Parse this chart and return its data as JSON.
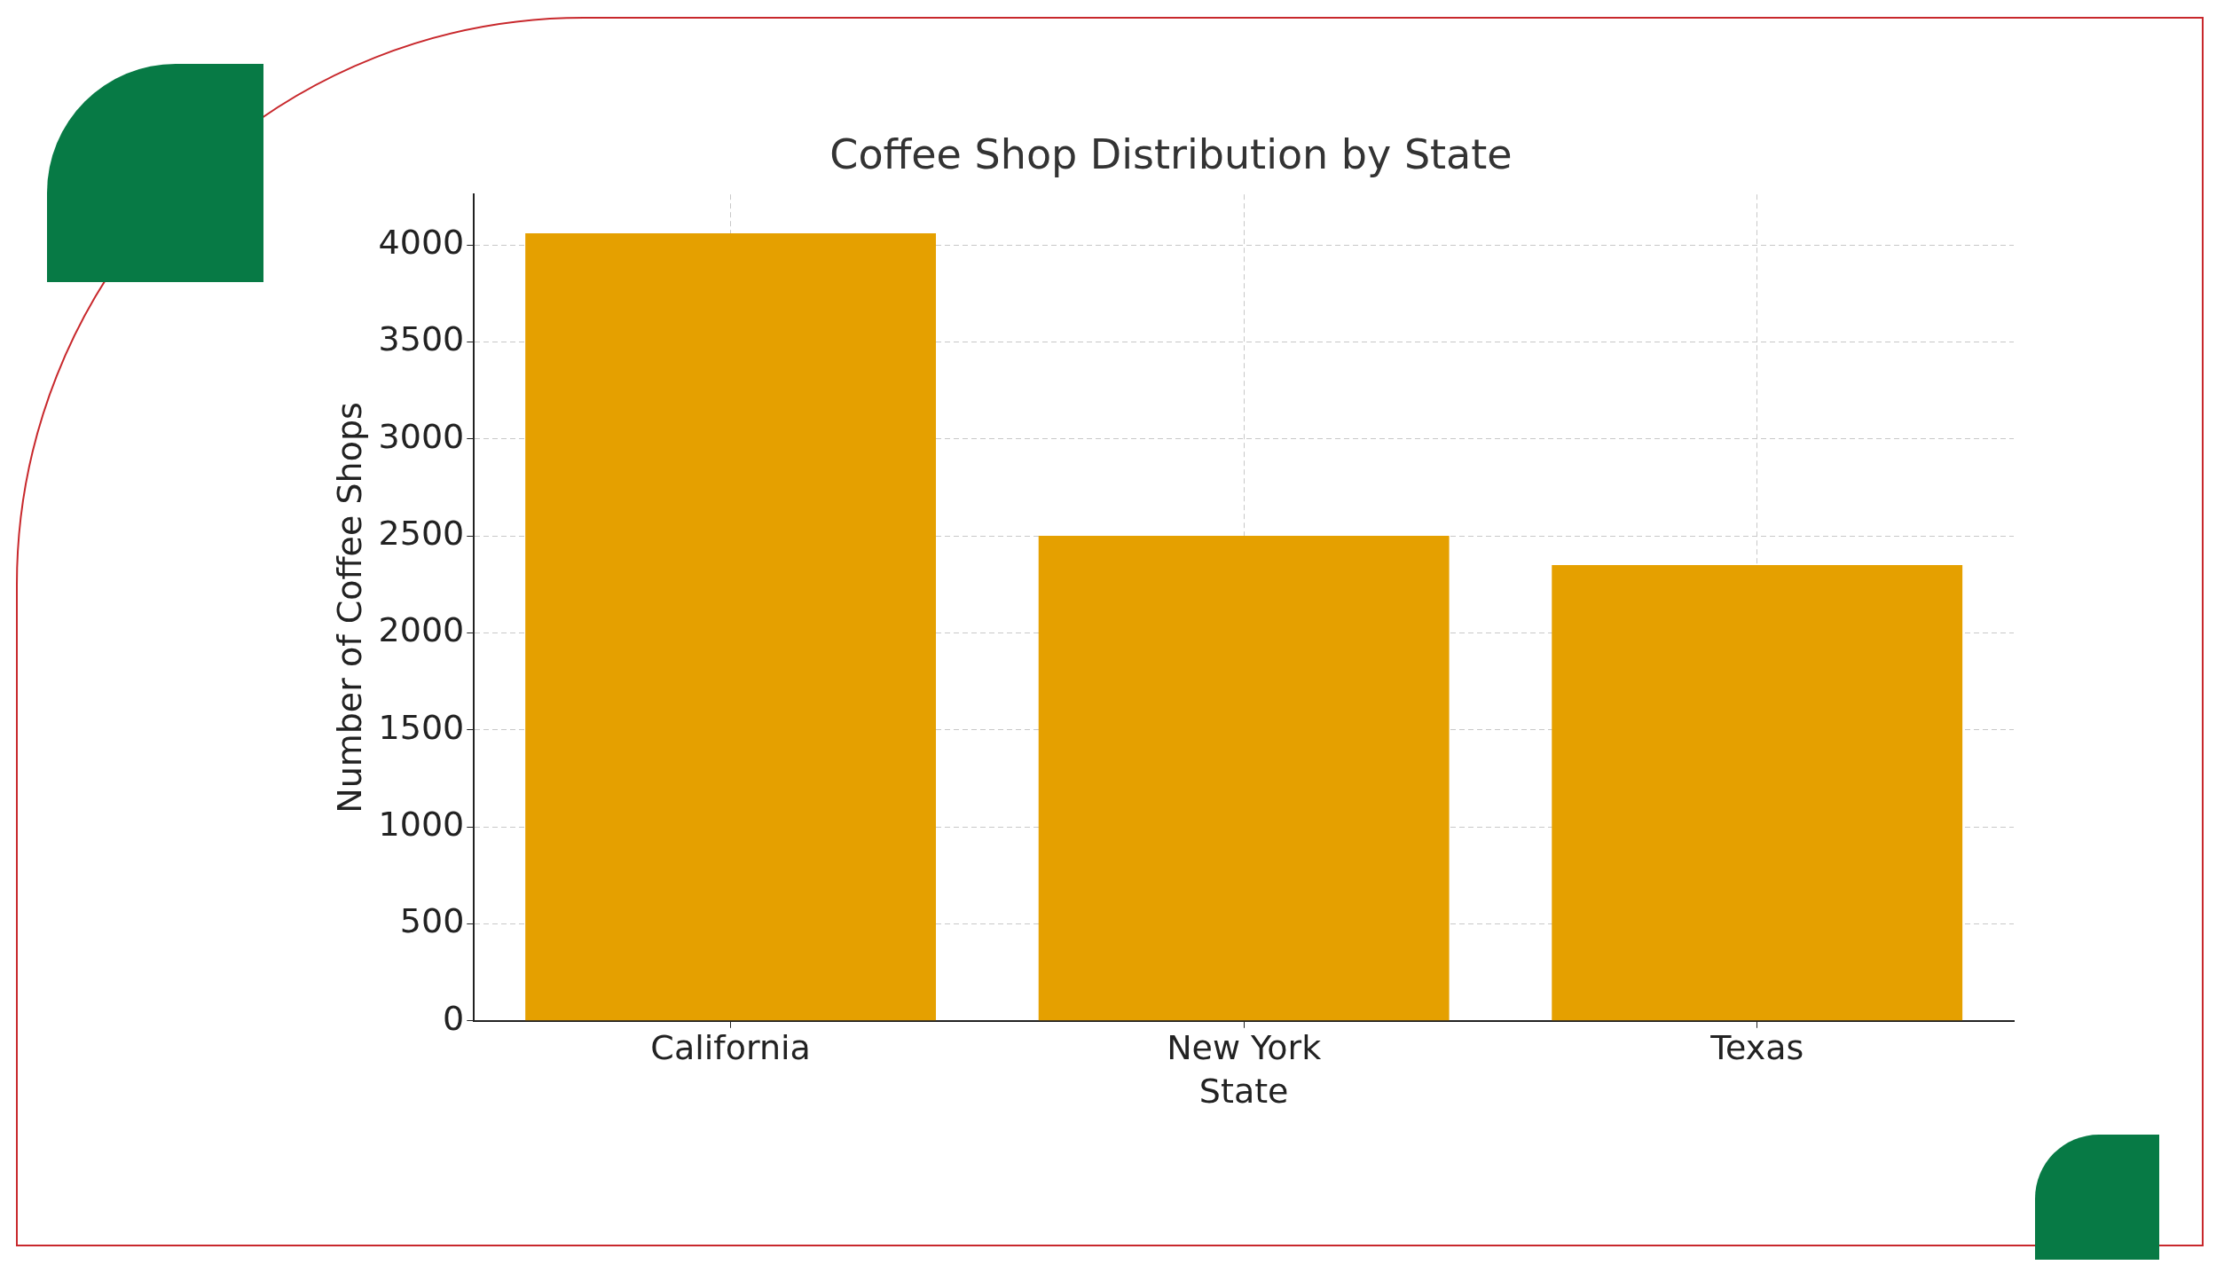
{
  "chart_data": {
    "type": "bar",
    "title": "Coffee Shop Distribution by State",
    "xlabel": "State",
    "ylabel": "Number of Coffee Shops",
    "categories": [
      "California",
      "New York",
      "Texas"
    ],
    "values": [
      4060,
      2500,
      2350
    ],
    "color": "#e5a000",
    "ylim": [
      0,
      4260
    ],
    "yticks": [
      0,
      500,
      1000,
      1500,
      2000,
      2500,
      3000,
      3500,
      4000
    ],
    "grid": true
  }
}
